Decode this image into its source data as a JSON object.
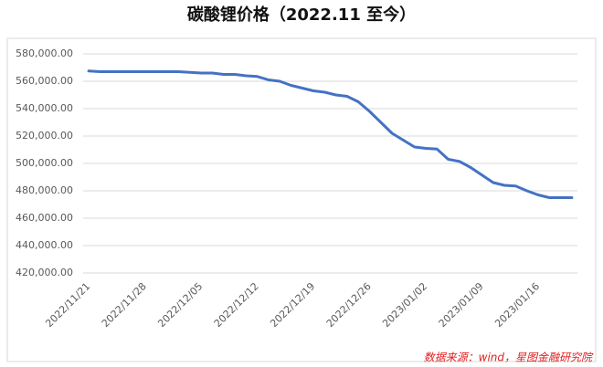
{
  "chart_data": {
    "type": "line",
    "title": "碳酸锂价格（2022.11 至今）",
    "note": "数据来源：wind，星图金融研究院",
    "categories": [
      "2022/11/21",
      null,
      null,
      null,
      null,
      "2022/11/28",
      null,
      null,
      null,
      null,
      "2022/12/05",
      null,
      null,
      null,
      null,
      "2022/12/12",
      null,
      null,
      null,
      null,
      "2022/12/19",
      null,
      null,
      null,
      null,
      "2022/12/26",
      null,
      null,
      null,
      null,
      "2023/01/02",
      null,
      null,
      null,
      null,
      "2023/01/09",
      null,
      null,
      null,
      null,
      "2023/01/16",
      null,
      null,
      null
    ],
    "series": [
      {
        "color": "#4472c4",
        "values": [
          567500,
          567000,
          567000,
          567000,
          567000,
          567000,
          567000,
          567000,
          567000,
          566500,
          566000,
          566000,
          565000,
          565000,
          564000,
          563500,
          561000,
          560000,
          557000,
          555000,
          553000,
          552000,
          550000,
          549000,
          545000,
          538000,
          530000,
          522000,
          517000,
          512000,
          511000,
          510500,
          503000,
          501500,
          497000,
          491500,
          486000,
          484000,
          483500,
          480000,
          477000,
          475000,
          475000,
          475000
        ]
      }
    ],
    "ylim": [
      420000,
      580000
    ],
    "yticks": [
      {
        "value": 420000,
        "label": "420,000.00"
      },
      {
        "value": 440000,
        "label": "440,000.00"
      },
      {
        "value": 460000,
        "label": "460,000.00"
      },
      {
        "value": 480000,
        "label": "480,000.00"
      },
      {
        "value": 500000,
        "label": "500,000.00"
      },
      {
        "value": 520000,
        "label": "520,000.00"
      },
      {
        "value": 540000,
        "label": "540,000.00"
      },
      {
        "value": 560000,
        "label": "560,000.00"
      },
      {
        "value": 580000,
        "label": "580,000.00"
      }
    ],
    "grid": true
  }
}
